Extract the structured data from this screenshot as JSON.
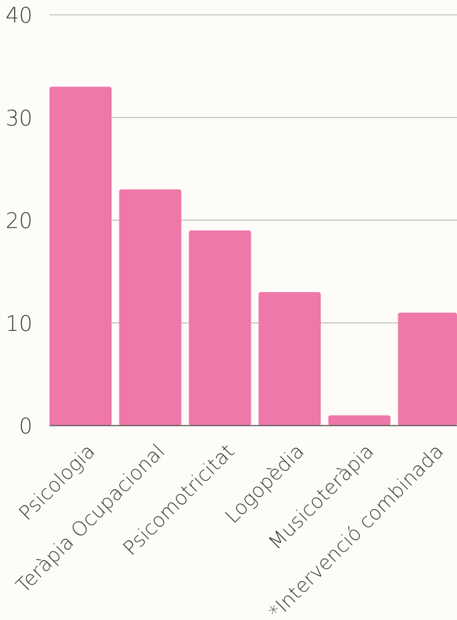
{
  "chart_data": {
    "type": "bar",
    "categories": [
      "Psicologia",
      "Teràpia Ocupacional",
      "Psicomotricitat",
      "Logopèdia",
      "Musicoteràpia",
      "*Intervenció combinada"
    ],
    "values": [
      33,
      23,
      19,
      13,
      1,
      11
    ],
    "ylim": [
      0,
      40
    ],
    "yticks": [
      "0",
      "10",
      "20",
      "30",
      "40"
    ],
    "grid": true,
    "bar_color": "#ef77aa",
    "grid_color": "#b8b8b8",
    "axis_color": "#555555",
    "background": "#fefcf8"
  }
}
